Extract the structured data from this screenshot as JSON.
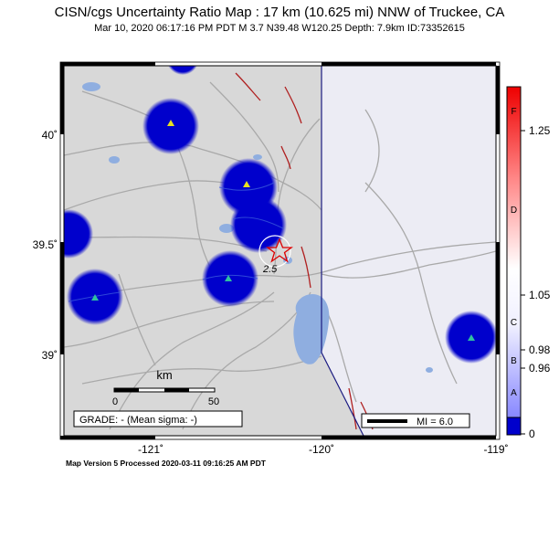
{
  "header": {
    "title": "CISN/cgs Uncertainty Ratio Map : 17 km (10.625 mi) NNW of Truckee, CA",
    "subtitle": "Mar 10, 2020 06:17:16 PM PDT   M 3.7   N39.48 W120.25   Depth: 7.9km   ID:73352615"
  },
  "axes": {
    "x_ticks": [
      "-121˚",
      "-120˚",
      "-119˚"
    ],
    "y_ticks": [
      "40˚",
      "39.5˚",
      "39˚"
    ]
  },
  "map": {
    "epicenter_label": "2.5",
    "scale_label": "km",
    "scale_ticks": [
      "0",
      "50"
    ],
    "grade_text": "GRADE: - (Mean sigma: -)",
    "mi_legend": "MI = 6.0",
    "station_marker_color_low": "#2222dd",
    "station_halo_color": "#0000cc"
  },
  "colorbar": {
    "letters": [
      "F",
      "D",
      "C",
      "B",
      "A"
    ],
    "values": [
      "1.25",
      "1.05",
      "0.98",
      "0.96",
      "0"
    ],
    "color_top": "#ee0000",
    "color_bottom": "#0000cc"
  },
  "footer": {
    "text": "Map Version 5 Processed 2020-03-11 09:16:25 AM PDT"
  }
}
